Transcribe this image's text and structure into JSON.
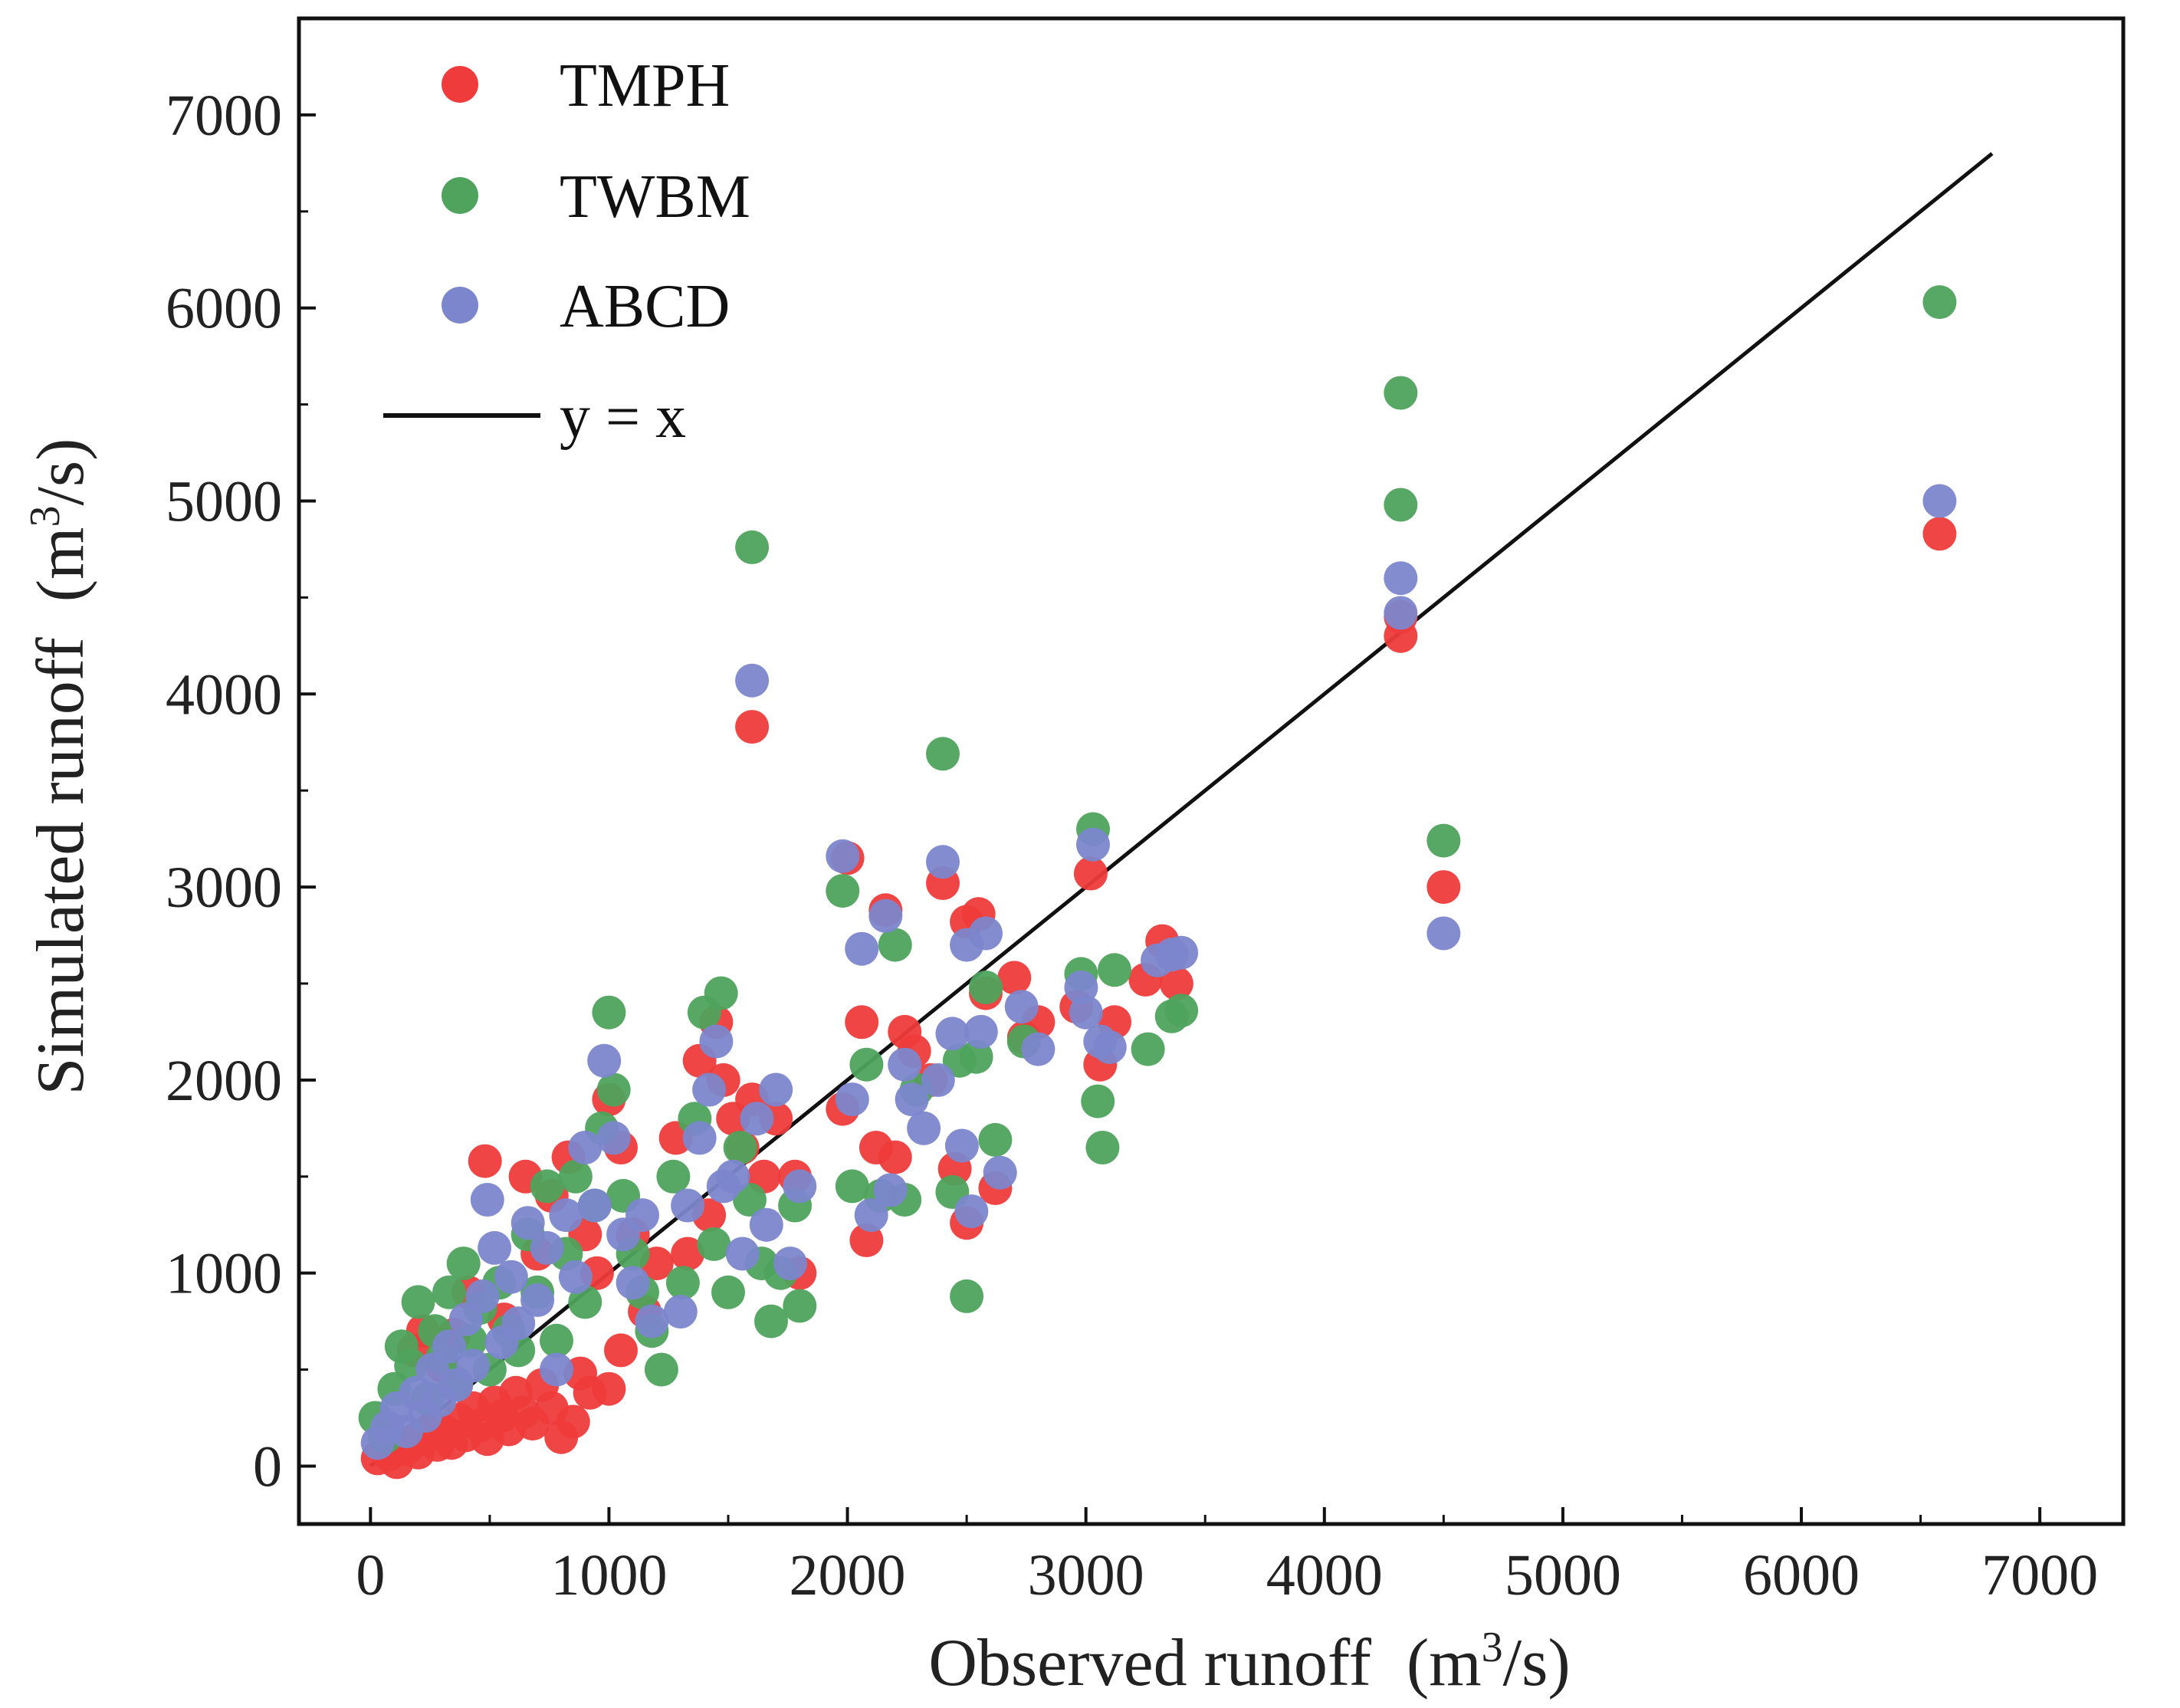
{
  "chart_data": {
    "type": "scatter",
    "xlabel": "Observed runoff",
    "xlabel_unit_pre": "(m",
    "xlabel_unit_sup": "3",
    "xlabel_unit_post": "/s)",
    "ylabel": "Simulated runoff",
    "ylabel_unit_pre": "(m",
    "ylabel_unit_sup": "3",
    "ylabel_unit_post": "/s)",
    "xlim": [
      -300,
      7350
    ],
    "ylim": [
      -300,
      7500
    ],
    "xticks": [
      0,
      1000,
      2000,
      3000,
      4000,
      5000,
      6000,
      7000
    ],
    "yticks": [
      0,
      1000,
      2000,
      3000,
      4000,
      5000,
      6000,
      7000
    ],
    "legend_position": "top-left",
    "grid": false,
    "reference_line": {
      "label": "y = x",
      "from": [
        0,
        0
      ],
      "to": [
        6800,
        6800
      ],
      "color": "#111111"
    },
    "series": [
      {
        "name": "TMPH",
        "color": "#ef3b3b",
        "points": [
          [
            30,
            40
          ],
          [
            80,
            60
          ],
          [
            110,
            20
          ],
          [
            150,
            90
          ],
          [
            180,
            130
          ],
          [
            200,
            70
          ],
          [
            230,
            150
          ],
          [
            260,
            200
          ],
          [
            280,
            110
          ],
          [
            310,
            180
          ],
          [
            340,
            120
          ],
          [
            370,
            240
          ],
          [
            400,
            160
          ],
          [
            430,
            300
          ],
          [
            460,
            210
          ],
          [
            490,
            140
          ],
          [
            520,
            330
          ],
          [
            550,
            260
          ],
          [
            580,
            190
          ],
          [
            610,
            380
          ],
          [
            640,
            280
          ],
          [
            680,
            220
          ],
          [
            720,
            420
          ],
          [
            760,
            300
          ],
          [
            800,
            150
          ],
          [
            850,
            230
          ],
          [
            880,
            480
          ],
          [
            920,
            380
          ],
          [
            180,
            600
          ],
          [
            220,
            700
          ],
          [
            300,
            520
          ],
          [
            350,
            680
          ],
          [
            410,
            900
          ],
          [
            480,
            1580
          ],
          [
            560,
            760
          ],
          [
            650,
            1500
          ],
          [
            700,
            1100
          ],
          [
            760,
            1400
          ],
          [
            830,
            1600
          ],
          [
            900,
            1200
          ],
          [
            950,
            1000
          ],
          [
            1000,
            1900
          ],
          [
            1050,
            1650
          ],
          [
            1100,
            1200
          ],
          [
            1150,
            800
          ],
          [
            1200,
            1050
          ],
          [
            1000,
            400
          ],
          [
            1050,
            600
          ],
          [
            1280,
            1700
          ],
          [
            1330,
            1100
          ],
          [
            1380,
            2100
          ],
          [
            1420,
            1300
          ],
          [
            1450,
            2300
          ],
          [
            1480,
            2000
          ],
          [
            1520,
            1800
          ],
          [
            1560,
            1650
          ],
          [
            1600,
            1900
          ],
          [
            1650,
            1500
          ],
          [
            1700,
            1800
          ],
          [
            1780,
            1500
          ],
          [
            1800,
            1000
          ],
          [
            1600,
            3830
          ],
          [
            1980,
            1850
          ],
          [
            2000,
            3150
          ],
          [
            2060,
            2300
          ],
          [
            2080,
            1170
          ],
          [
            2120,
            1650
          ],
          [
            2160,
            2880
          ],
          [
            2200,
            1600
          ],
          [
            2240,
            2250
          ],
          [
            2280,
            2150
          ],
          [
            2350,
            2000
          ],
          [
            2400,
            3020
          ],
          [
            2450,
            1540
          ],
          [
            2500,
            2820
          ],
          [
            2500,
            1260
          ],
          [
            2550,
            2860
          ],
          [
            2580,
            2450
          ],
          [
            2620,
            1440
          ],
          [
            2700,
            2530
          ],
          [
            2740,
            2220
          ],
          [
            2800,
            2300
          ],
          [
            2960,
            2380
          ],
          [
            3020,
            3070
          ],
          [
            3060,
            2080
          ],
          [
            3120,
            2300
          ],
          [
            3250,
            2520
          ],
          [
            3320,
            2720
          ],
          [
            3380,
            2500
          ],
          [
            4320,
            4300
          ],
          [
            4320,
            4400
          ],
          [
            4500,
            3000
          ],
          [
            6580,
            4830
          ]
        ]
      },
      {
        "name": "TWBM",
        "color": "#4fa35d",
        "points": [
          [
            20,
            250
          ],
          [
            60,
            150
          ],
          [
            100,
            400
          ],
          [
            130,
            620
          ],
          [
            170,
            520
          ],
          [
            200,
            850
          ],
          [
            240,
            350
          ],
          [
            270,
            700
          ],
          [
            300,
            560
          ],
          [
            330,
            900
          ],
          [
            360,
            430
          ],
          [
            390,
            1050
          ],
          [
            420,
            650
          ],
          [
            460,
            820
          ],
          [
            500,
            500
          ],
          [
            540,
            950
          ],
          [
            580,
            700
          ],
          [
            620,
            600
          ],
          [
            660,
            1200
          ],
          [
            700,
            900
          ],
          [
            740,
            1450
          ],
          [
            780,
            650
          ],
          [
            820,
            1100
          ],
          [
            860,
            1500
          ],
          [
            900,
            850
          ],
          [
            940,
            1350
          ],
          [
            970,
            1750
          ],
          [
            1000,
            2350
          ],
          [
            1020,
            1950
          ],
          [
            1060,
            1400
          ],
          [
            1100,
            1100
          ],
          [
            1140,
            900
          ],
          [
            1180,
            700
          ],
          [
            1220,
            500
          ],
          [
            1270,
            1500
          ],
          [
            1310,
            950
          ],
          [
            1360,
            1800
          ],
          [
            1400,
            2350
          ],
          [
            1440,
            1150
          ],
          [
            1470,
            2450
          ],
          [
            1500,
            900
          ],
          [
            1550,
            1650
          ],
          [
            1590,
            1380
          ],
          [
            1600,
            4760
          ],
          [
            1640,
            1050
          ],
          [
            1680,
            750
          ],
          [
            1720,
            1000
          ],
          [
            1780,
            1350
          ],
          [
            1800,
            830
          ],
          [
            1980,
            2980
          ],
          [
            2020,
            1450
          ],
          [
            2080,
            2080
          ],
          [
            2140,
            1400
          ],
          [
            2200,
            2700
          ],
          [
            2240,
            1380
          ],
          [
            2290,
            1950
          ],
          [
            2400,
            3690
          ],
          [
            2440,
            1420
          ],
          [
            2470,
            2100
          ],
          [
            2500,
            880
          ],
          [
            2540,
            2120
          ],
          [
            2580,
            2480
          ],
          [
            2620,
            1690
          ],
          [
            2740,
            2200
          ],
          [
            2980,
            2550
          ],
          [
            3030,
            3300
          ],
          [
            3050,
            1890
          ],
          [
            3070,
            1650
          ],
          [
            3120,
            2570
          ],
          [
            3260,
            2160
          ],
          [
            3360,
            2330
          ],
          [
            3400,
            2360
          ],
          [
            4320,
            4980
          ],
          [
            4320,
            5560
          ],
          [
            4500,
            3240
          ],
          [
            6580,
            6030
          ]
        ]
      },
      {
        "name": "ABCD",
        "color": "#7b86cc",
        "points": [
          [
            30,
            120
          ],
          [
            70,
            200
          ],
          [
            110,
            300
          ],
          [
            150,
            180
          ],
          [
            190,
            380
          ],
          [
            230,
            260
          ],
          [
            260,
            500
          ],
          [
            290,
            340
          ],
          [
            330,
            620
          ],
          [
            360,
            420
          ],
          [
            400,
            760
          ],
          [
            430,
            520
          ],
          [
            470,
            880
          ],
          [
            490,
            1380
          ],
          [
            520,
            1130
          ],
          [
            550,
            640
          ],
          [
            590,
            980
          ],
          [
            620,
            740
          ],
          [
            660,
            1260
          ],
          [
            700,
            860
          ],
          [
            740,
            1130
          ],
          [
            780,
            500
          ],
          [
            820,
            1300
          ],
          [
            860,
            980
          ],
          [
            900,
            1650
          ],
          [
            940,
            1350
          ],
          [
            980,
            2100
          ],
          [
            1020,
            1700
          ],
          [
            1060,
            1200
          ],
          [
            1100,
            950
          ],
          [
            1140,
            1300
          ],
          [
            1180,
            750
          ],
          [
            1300,
            800
          ],
          [
            1330,
            1350
          ],
          [
            1380,
            1700
          ],
          [
            1420,
            1950
          ],
          [
            1450,
            2200
          ],
          [
            1480,
            1450
          ],
          [
            1520,
            1500
          ],
          [
            1560,
            1100
          ],
          [
            1600,
            4070
          ],
          [
            1620,
            1800
          ],
          [
            1660,
            1250
          ],
          [
            1700,
            1950
          ],
          [
            1760,
            1050
          ],
          [
            1800,
            1450
          ],
          [
            1980,
            3160
          ],
          [
            2020,
            1900
          ],
          [
            2060,
            2680
          ],
          [
            2100,
            1300
          ],
          [
            2160,
            2850
          ],
          [
            2180,
            1430
          ],
          [
            2240,
            2080
          ],
          [
            2270,
            1900
          ],
          [
            2320,
            1750
          ],
          [
            2380,
            2000
          ],
          [
            2400,
            3130
          ],
          [
            2440,
            2240
          ],
          [
            2480,
            1660
          ],
          [
            2500,
            2700
          ],
          [
            2520,
            1320
          ],
          [
            2560,
            2250
          ],
          [
            2580,
            2760
          ],
          [
            2640,
            1520
          ],
          [
            2730,
            2380
          ],
          [
            2800,
            2160
          ],
          [
            2980,
            2480
          ],
          [
            3000,
            2350
          ],
          [
            3030,
            3220
          ],
          [
            3060,
            2200
          ],
          [
            3100,
            2170
          ],
          [
            3300,
            2620
          ],
          [
            3360,
            2650
          ],
          [
            3400,
            2660
          ],
          [
            4320,
            4600
          ],
          [
            4320,
            4420
          ],
          [
            4500,
            2760
          ],
          [
            6580,
            5000
          ]
        ]
      }
    ]
  }
}
